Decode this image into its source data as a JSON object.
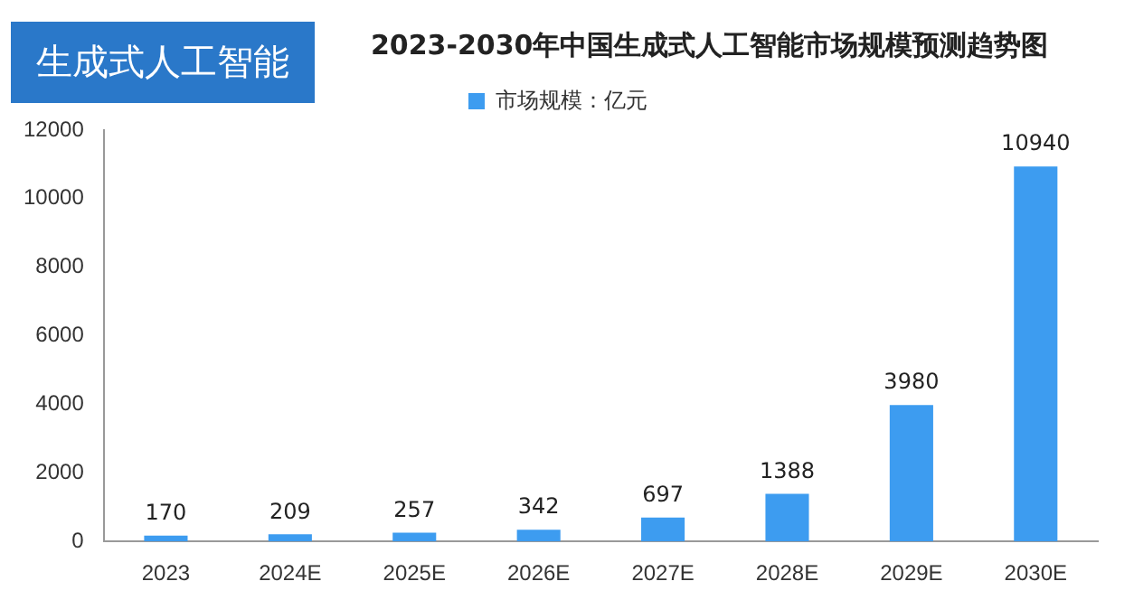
{
  "chart_data": {
    "type": "bar",
    "title": "2023-2030年中国生成式人工智能市场规模预测趋势图",
    "annotations": [
      "生成式人工智能"
    ],
    "categories": [
      "2023",
      "2024E",
      "2025E",
      "2026E",
      "2027E",
      "2028E",
      "2029E",
      "2030E"
    ],
    "series": [
      {
        "name": "市场规模：亿元",
        "color": "#3d9cf0",
        "values": [
          170,
          209,
          257,
          342,
          697,
          1388,
          3980,
          10940
        ]
      }
    ],
    "ylim": [
      0,
      12000
    ],
    "yticks": [
      0,
      2000,
      4000,
      6000,
      8000,
      10000,
      12000
    ],
    "grid": false,
    "legend": "top",
    "data_labels": true
  }
}
